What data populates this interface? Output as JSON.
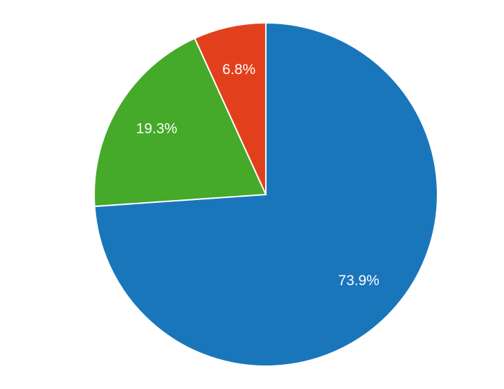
{
  "chart_data": {
    "type": "pie",
    "values": [
      73.9,
      19.3,
      6.8
    ],
    "value_labels": [
      "73.9%",
      "19.3%",
      "6.8%"
    ],
    "colors": [
      "#1a76bb",
      "#45a929",
      "#e2401c"
    ]
  }
}
